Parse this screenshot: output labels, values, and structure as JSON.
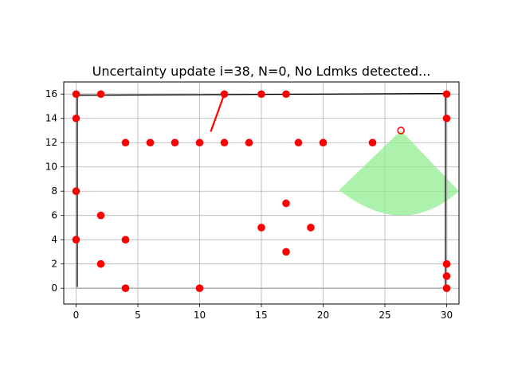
{
  "chart_data": {
    "type": "scatter",
    "title": "Uncertainty update i=38, N=0, No Ldmks detected...",
    "xlabel": "",
    "ylabel": "",
    "xlim": [
      -1,
      31
    ],
    "ylim": [
      -1.3,
      17
    ],
    "xticks": [
      0,
      5,
      10,
      15,
      20,
      25,
      30
    ],
    "yticks": [
      0,
      2,
      4,
      6,
      8,
      10,
      12,
      14,
      16
    ],
    "grid": true,
    "landmarks": {
      "color": "#ff0000",
      "points": [
        [
          0,
          16
        ],
        [
          2,
          16
        ],
        [
          12,
          16
        ],
        [
          15,
          16
        ],
        [
          17,
          16
        ],
        [
          30,
          16
        ],
        [
          0,
          14
        ],
        [
          30,
          14
        ],
        [
          4,
          12
        ],
        [
          6,
          12
        ],
        [
          8,
          12
        ],
        [
          10,
          12
        ],
        [
          12,
          12
        ],
        [
          14,
          12
        ],
        [
          18,
          12
        ],
        [
          20,
          12
        ],
        [
          24,
          12
        ],
        [
          0,
          8
        ],
        [
          17,
          7
        ],
        [
          2,
          6
        ],
        [
          15,
          5
        ],
        [
          19,
          5
        ],
        [
          0,
          4
        ],
        [
          4,
          4
        ],
        [
          17,
          3
        ],
        [
          2,
          2
        ],
        [
          30,
          2
        ],
        [
          30,
          1
        ],
        [
          4,
          0
        ],
        [
          10,
          0
        ],
        [
          30,
          0
        ]
      ]
    },
    "ground_truth_path": {
      "color": "#b0b0b0",
      "points": [
        [
          0,
          0
        ],
        [
          30,
          0
        ],
        [
          30,
          16
        ],
        [
          0,
          16
        ],
        [
          0,
          0
        ]
      ]
    },
    "estimated_path": {
      "color": "#000000",
      "points": [
        [
          0.1,
          0.1
        ],
        [
          0.1,
          15.9
        ],
        [
          30,
          16.05
        ],
        [
          29.9,
          15.9
        ],
        [
          29.9,
          0.2
        ]
      ]
    },
    "uncertainty_track": {
      "color": "#ff0000",
      "points": [
        [
          10.9,
          12.9
        ],
        [
          12,
          16
        ]
      ]
    },
    "robot": {
      "color": "#ff0000",
      "position": [
        26.3,
        13
      ]
    },
    "sensor_fov": {
      "color": "#90ee90",
      "apex": [
        26.3,
        13
      ],
      "arc_start": [
        21.3,
        8.1
      ],
      "arc_bottom": [
        26.3,
        6.0
      ],
      "arc_end": [
        31,
        8.0
      ]
    }
  }
}
